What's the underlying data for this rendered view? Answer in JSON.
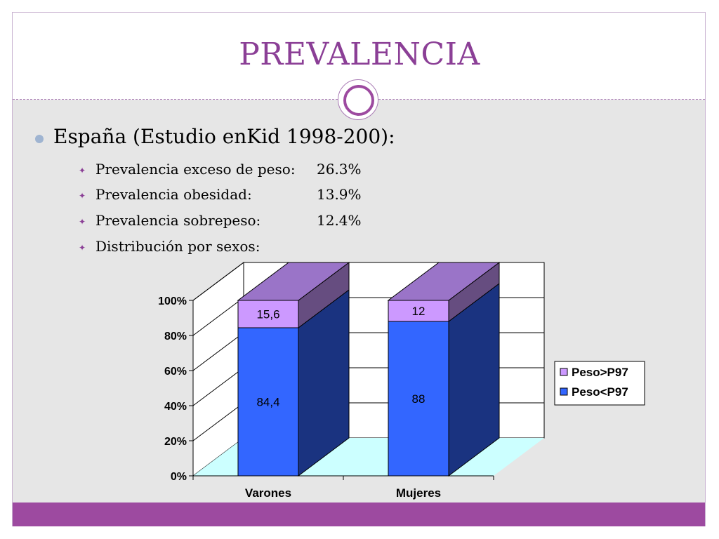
{
  "slide": {
    "title": "PREVALENCIA",
    "heading": "España (Estudio enKid 1998-200):",
    "items": [
      {
        "label": "Prevalencia exceso de peso:",
        "value": "26.3%"
      },
      {
        "label": "Prevalencia obesidad:",
        "value": "13.9%"
      },
      {
        "label": "Prevalencia sobrepeso:",
        "value": "12.4%"
      },
      {
        "label": "Distribución por sexos:",
        "value": ""
      }
    ],
    "colors": {
      "accent": "#9d4aa0",
      "title": "#8b3f96",
      "background": "#e6e6e6"
    }
  },
  "chart_data": {
    "type": "bar",
    "stacked": true,
    "percent": true,
    "categories": [
      "Varones",
      "Mujeres"
    ],
    "series": [
      {
        "name": "Peso<P97",
        "values": [
          84.4,
          88
        ],
        "labels": [
          "84,4",
          "88"
        ],
        "color": "#3366ff"
      },
      {
        "name": "Peso>P97",
        "values": [
          15.6,
          12
        ],
        "labels": [
          "15,6",
          "12"
        ],
        "color": "#cc99ff"
      }
    ],
    "y_ticks": [
      "0%",
      "20%",
      "40%",
      "60%",
      "80%",
      "100%"
    ],
    "ylim": [
      0,
      100
    ],
    "legend_position": "right",
    "grid": true,
    "three_d": true,
    "floor_color": "#ccffff"
  }
}
